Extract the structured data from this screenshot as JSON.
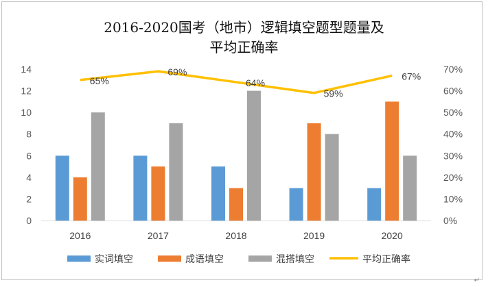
{
  "chart_data": {
    "type": "bar",
    "title_line1": "2016-2020国考（地市）逻辑填空题型题量及",
    "title_line2": "平均正确率",
    "categories": [
      "2016",
      "2017",
      "2018",
      "2019",
      "2020"
    ],
    "series": [
      {
        "name": "实词填空",
        "type": "bar",
        "axis": "left",
        "color": "#5B9BD5",
        "values": [
          6,
          6,
          5,
          3,
          3
        ]
      },
      {
        "name": "成语填空",
        "type": "bar",
        "axis": "left",
        "color": "#ED7D31",
        "values": [
          4,
          5,
          3,
          9,
          11
        ]
      },
      {
        "name": "混搭填空",
        "type": "bar",
        "axis": "left",
        "color": "#A5A5A5",
        "values": [
          10,
          9,
          12,
          8,
          6
        ]
      },
      {
        "name": "平均正确率",
        "type": "line",
        "axis": "right",
        "color": "#FFC000",
        "values": [
          0.65,
          0.69,
          0.64,
          0.59,
          0.67
        ],
        "labels": [
          "65%",
          "69%",
          "64%",
          "59%",
          "67%"
        ]
      }
    ],
    "left_axis": {
      "min": 0,
      "max": 14,
      "step": 2,
      "ticks": [
        "0",
        "2",
        "4",
        "6",
        "8",
        "10",
        "12",
        "14"
      ]
    },
    "right_axis": {
      "min": 0,
      "max": 0.7,
      "step": 0.1,
      "ticks": [
        "0%",
        "10%",
        "20%",
        "30%",
        "40%",
        "50%",
        "60%",
        "70%"
      ]
    },
    "grid": false,
    "legend_position": "bottom"
  }
}
